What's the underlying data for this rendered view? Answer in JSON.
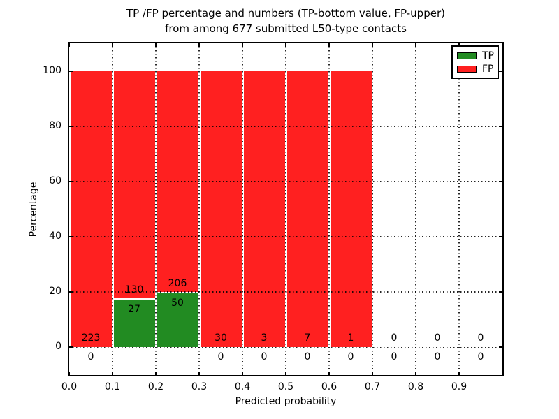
{
  "figure": {
    "title_line1": "TP /FP percentage and numbers (TP-bottom value, FP-upper)",
    "title_line2": "from among 677 submitted L50-type contacts",
    "xlabel": "Predicted probability",
    "ylabel": "Percentage"
  },
  "legend": {
    "position": "upper-right",
    "items": [
      {
        "label": "TP",
        "color": "#228B22"
      },
      {
        "label": "FP",
        "color": "#FF2020"
      }
    ]
  },
  "chart_data": {
    "type": "bar",
    "stacked": true,
    "normalized": "percentage",
    "title": "TP /FP percentage and numbers (TP-bottom value, FP-upper) from among 677 submitted L50-type contacts",
    "xlabel": "Predicted probability",
    "ylabel": "Percentage",
    "total_contacts": 677,
    "grid": "dotted",
    "legend_position": "upper right",
    "xlim": [
      0.0,
      1.0
    ],
    "ylim": [
      -10,
      110
    ],
    "bin_width": 0.1,
    "bin_starts": [
      0.0,
      0.1,
      0.2,
      0.3,
      0.4,
      0.5,
      0.6,
      0.7,
      0.8,
      0.9
    ],
    "x_tick_labels": [
      "0.0",
      "0.1",
      "0.2",
      "0.3",
      "0.4",
      "0.5",
      "0.6",
      "0.7",
      "0.8",
      "0.9"
    ],
    "y_ticks": [
      0,
      20,
      40,
      60,
      80,
      100
    ],
    "series": [
      {
        "name": "TP",
        "color": "#228B22",
        "counts": [
          0,
          27,
          50,
          0,
          0,
          0,
          0,
          0,
          0,
          0
        ]
      },
      {
        "name": "FP",
        "color": "#FF2020",
        "counts": [
          223,
          130,
          206,
          30,
          3,
          7,
          1,
          0,
          0,
          0
        ]
      }
    ],
    "percent_heights": {
      "TP": [
        0,
        17.2,
        19.5,
        0,
        0,
        0,
        0,
        0,
        0,
        0
      ],
      "FP": [
        100,
        82.8,
        80.5,
        100,
        100,
        100,
        100,
        0,
        0,
        0
      ]
    }
  }
}
